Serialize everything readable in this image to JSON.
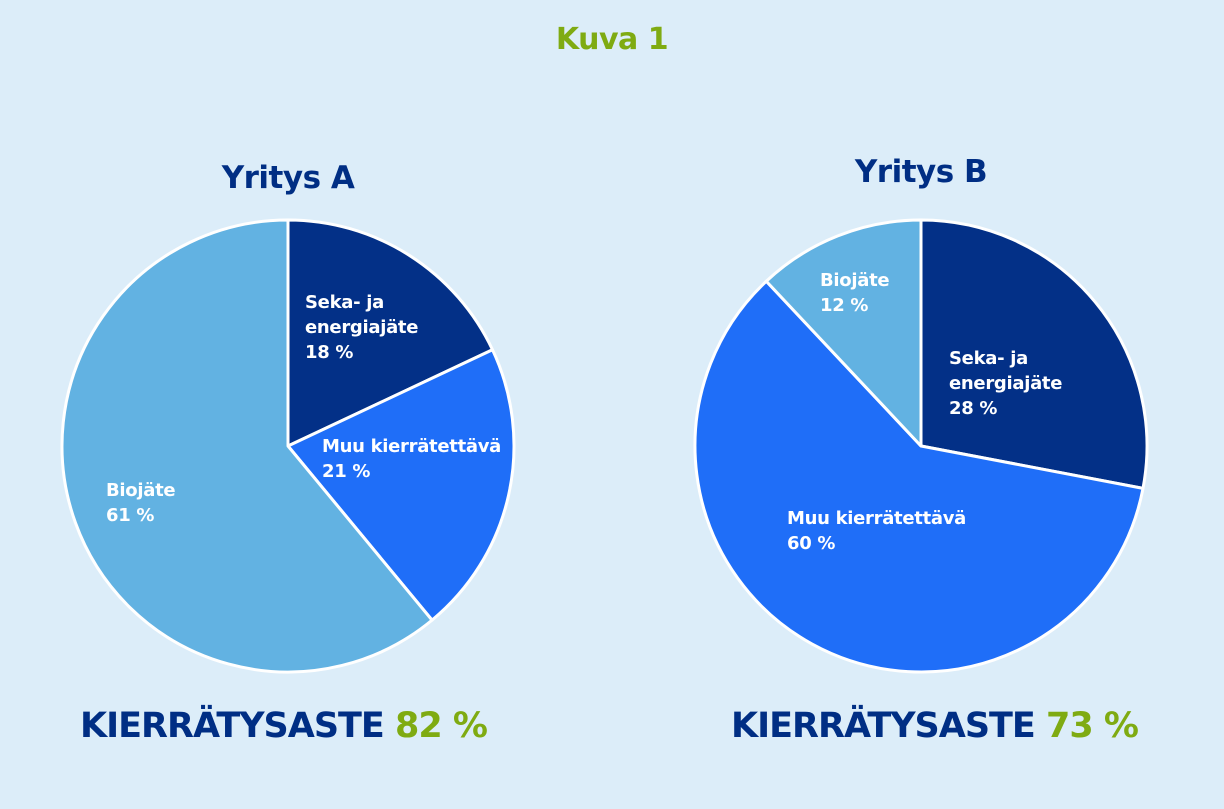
{
  "page_title": "Kuva 1",
  "colors": {
    "background": "#dcedf9",
    "navy": "#002e84",
    "green": "#7fab12",
    "dark_blue": "#033087",
    "bright_blue": "#1f6ef8",
    "light_blue": "#62b2e2",
    "slice_border": "#ffffff"
  },
  "footers": [
    {
      "label": "KIERRÄTYSASTE",
      "value": "82 %"
    },
    {
      "label": "KIERRÄTYSASTE",
      "value": "73 %"
    }
  ],
  "chart_data": [
    {
      "type": "pie",
      "title": "Yritys A",
      "slices": [
        {
          "label": "Seka- ja energiajäte",
          "label_lines": [
            "Seka- ja",
            "energiajäte"
          ],
          "value": 18,
          "value_label": "18 %",
          "color": "#033087"
        },
        {
          "label": "Muu kierrätettävä",
          "label_lines": [
            "Muu kierrätettävä"
          ],
          "value": 21,
          "value_label": "21 %",
          "color": "#1f6ef8"
        },
        {
          "label": "Biojäte",
          "label_lines": [
            "Biojäte"
          ],
          "value": 61,
          "value_label": "61 %",
          "color": "#62b2e2"
        }
      ]
    },
    {
      "type": "pie",
      "title": "Yritys B",
      "slices": [
        {
          "label": "Seka- ja energiajäte",
          "label_lines": [
            "Seka- ja",
            "energiajäte"
          ],
          "value": 28,
          "value_label": "28 %",
          "color": "#033087"
        },
        {
          "label": "Muu kierrätettävä",
          "label_lines": [
            "Muu kierrätettävä"
          ],
          "value": 60,
          "value_label": "60 %",
          "color": "#1f6ef8"
        },
        {
          "label": "Biojäte",
          "label_lines": [
            "Biojäte"
          ],
          "value": 12,
          "value_label": "12 %",
          "color": "#62b2e2"
        }
      ]
    }
  ]
}
